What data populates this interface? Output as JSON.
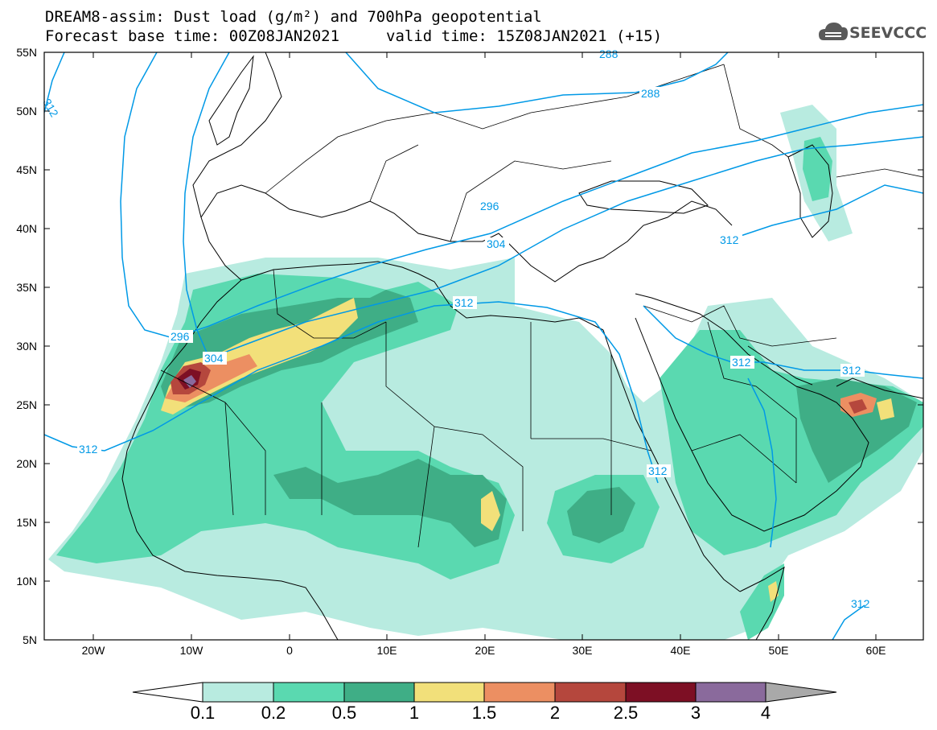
{
  "header": {
    "title": "DREAM8-assim: Dust load (g/m²) and 700hPa geopotential",
    "base_time": "Forecast base time: 00Z08JAN2021",
    "valid_time": "valid time: 15Z08JAN2021 (+15)",
    "logo_text": "SEEVCCC"
  },
  "axes": {
    "lat_labels": [
      "55N",
      "50N",
      "45N",
      "40N",
      "35N",
      "30N",
      "25N",
      "20N",
      "15N",
      "10N",
      "5N"
    ],
    "lon_labels": [
      "20W",
      "10W",
      "0",
      "10E",
      "20E",
      "30E",
      "40E",
      "50E",
      "60E"
    ]
  },
  "contours": {
    "labels": [
      "288",
      "288",
      "296",
      "304",
      "312",
      "312",
      "296",
      "304",
      "312",
      "312",
      "312",
      "312",
      "312",
      "312"
    ]
  },
  "colorbar": {
    "labels": [
      "0.1",
      "0.2",
      "0.5",
      "1",
      "1.5",
      "2",
      "2.5",
      "3",
      "4"
    ],
    "colors": [
      "#b8ebe0",
      "#5ad9b0",
      "#3fae86",
      "#f2e07a",
      "#ec8f62",
      "#b5473d",
      "#7d0f24",
      "#8a6a9c",
      "#a9a9a9"
    ]
  },
  "colors": {
    "contour_line": "#0099e6",
    "coastline": "#000000"
  }
}
